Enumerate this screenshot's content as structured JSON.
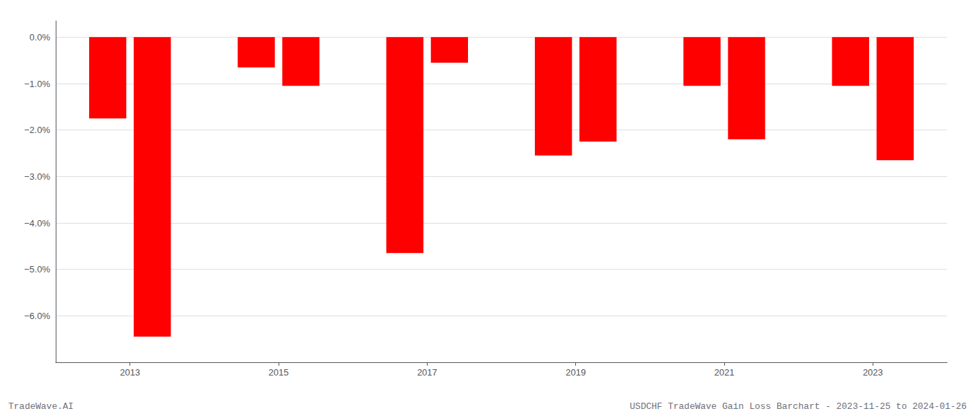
{
  "chart_data": {
    "type": "bar",
    "x": [
      2012.7,
      2013.3,
      2014.7,
      2015.3,
      2016.7,
      2017.3,
      2018.7,
      2019.3,
      2020.7,
      2021.3,
      2022.7,
      2023.3
    ],
    "values": [
      -1.75,
      -6.45,
      -0.65,
      -1.05,
      -4.65,
      -0.55,
      -2.55,
      -2.25,
      -1.05,
      -2.2,
      -1.05,
      -2.65
    ],
    "color": "#FF0000",
    "xlim": [
      2012.0,
      2024.0
    ],
    "xticks": [
      2013,
      2015,
      2017,
      2019,
      2021,
      2023
    ],
    "ylim": [
      -7.0,
      0.35
    ],
    "yticks": [
      {
        "value": 0.0,
        "label": "0.0%"
      },
      {
        "value": -1.0,
        "label": "−1.0%"
      },
      {
        "value": -2.0,
        "label": "−2.0%"
      },
      {
        "value": -3.0,
        "label": "−3.0%"
      },
      {
        "value": -4.0,
        "label": "−4.0%"
      },
      {
        "value": -5.0,
        "label": "−5.0%"
      },
      {
        "value": -6.0,
        "label": "−6.0%"
      }
    ],
    "grid": true,
    "annotations": [
      "TradeWave.AI",
      "USDCHF TradeWave Gain Loss Barchart - 2023-11-25 to 2024-01-26"
    ]
  }
}
